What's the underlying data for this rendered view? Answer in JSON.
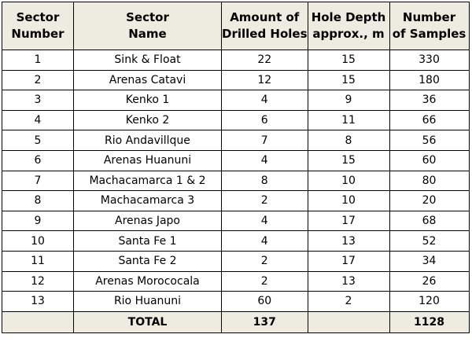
{
  "table": {
    "headers": [
      {
        "line1": "Sector",
        "line2": "Number"
      },
      {
        "line1": "Sector",
        "line2": "Name"
      },
      {
        "line1": "Amount of",
        "line2": "Drilled Holes"
      },
      {
        "line1": "Hole Depth",
        "line2": "approx., m"
      },
      {
        "line1": "Number",
        "line2": "of Samples"
      }
    ],
    "rows": [
      {
        "sector": "1",
        "name": "Sink & Float",
        "holes": "22",
        "depth": "15",
        "samples": "330"
      },
      {
        "sector": "2",
        "name": "Arenas Catavi",
        "holes": "12",
        "depth": "15",
        "samples": "180"
      },
      {
        "sector": "3",
        "name": "Kenko 1",
        "holes": "4",
        "depth": "9",
        "samples": "36"
      },
      {
        "sector": "4",
        "name": "Kenko 2",
        "holes": "6",
        "depth": "11",
        "samples": "66"
      },
      {
        "sector": "5",
        "name": "Rio Andavillque",
        "holes": "7",
        "depth": "8",
        "samples": "56"
      },
      {
        "sector": "6",
        "name": "Arenas Huanuni",
        "holes": "4",
        "depth": "15",
        "samples": "60"
      },
      {
        "sector": "7",
        "name": "Machacamarca 1 & 2",
        "holes": "8",
        "depth": "10",
        "samples": "80"
      },
      {
        "sector": "8",
        "name": "Machacamarca 3",
        "holes": "2",
        "depth": "10",
        "samples": "20"
      },
      {
        "sector": "9",
        "name": "Arenas Japo",
        "holes": "4",
        "depth": "17",
        "samples": "68"
      },
      {
        "sector": "10",
        "name": "Santa Fe 1",
        "holes": "4",
        "depth": "13",
        "samples": "52"
      },
      {
        "sector": "11",
        "name": "Santa Fe 2",
        "holes": "2",
        "depth": "17",
        "samples": "34"
      },
      {
        "sector": "12",
        "name": "Arenas Morococala",
        "holes": "2",
        "depth": "13",
        "samples": "26"
      },
      {
        "sector": "13",
        "name": "Rio Huanuni",
        "holes": "60",
        "depth": "2",
        "samples": "120"
      }
    ],
    "total": {
      "label": "TOTAL",
      "holes": "137",
      "samples": "1128"
    }
  },
  "colors": {
    "header_bg": "#eeece1",
    "border": "#000000"
  }
}
